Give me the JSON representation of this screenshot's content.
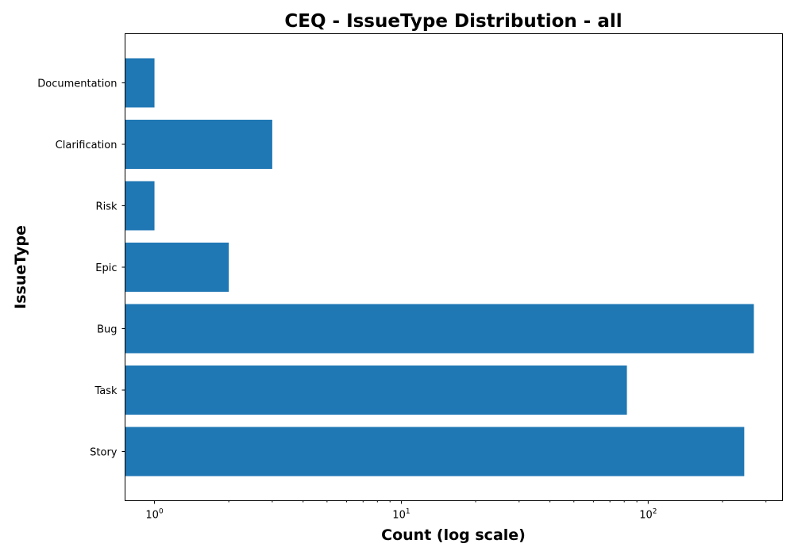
{
  "chart_data": {
    "type": "bar",
    "orientation": "horizontal",
    "title": "CEQ - IssueType Distribution - all",
    "xlabel": "Count (log scale)",
    "ylabel": "IssueType",
    "xscale": "log",
    "xlim": [
      0.76,
      350
    ],
    "categories": [
      "Story",
      "Task",
      "Bug",
      "Epic",
      "Risk",
      "Clarification",
      "Documentation"
    ],
    "values": [
      245,
      82,
      268,
      2,
      1,
      3,
      1
    ],
    "x_ticks": [
      {
        "base": "10",
        "exp": "0",
        "value": 1
      },
      {
        "base": "10",
        "exp": "1",
        "value": 10
      },
      {
        "base": "10",
        "exp": "2",
        "value": 100
      }
    ],
    "bar_color": "#1f77b4",
    "grid": false,
    "legend": "none"
  }
}
